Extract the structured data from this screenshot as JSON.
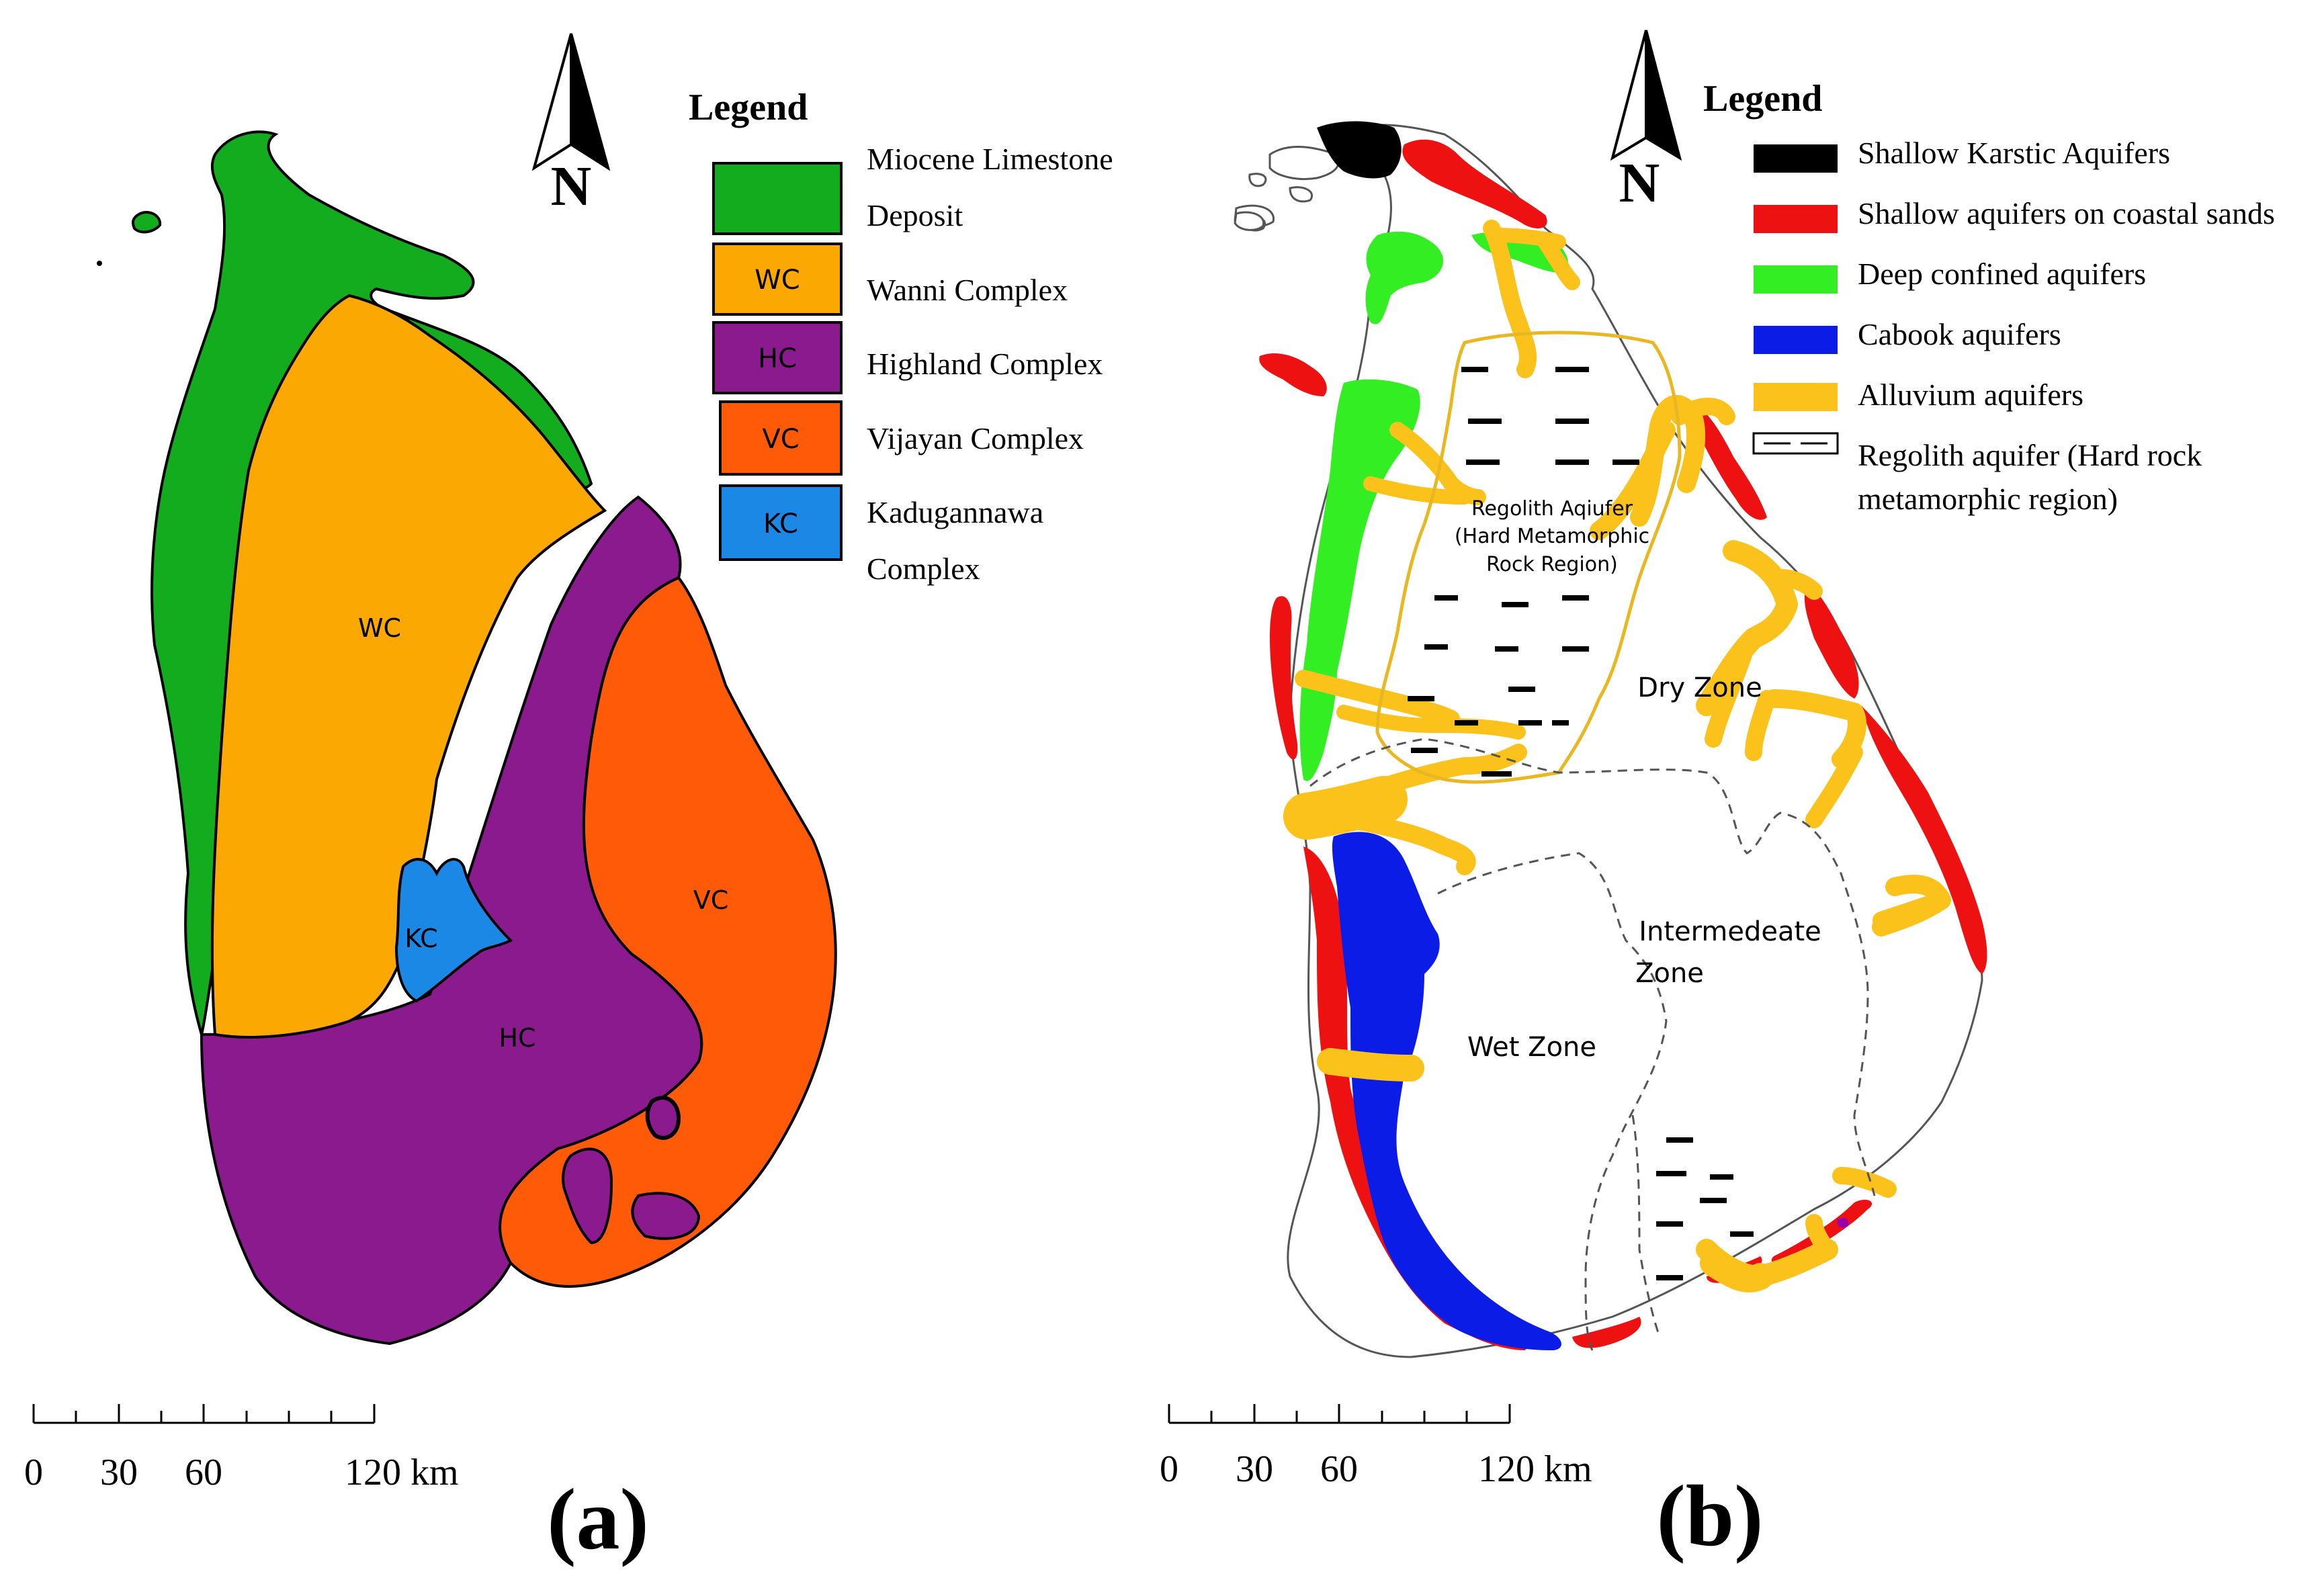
{
  "panel_a": {
    "label": "(a)",
    "legend_title": "Legend",
    "north": "N",
    "legend": [
      {
        "code": "",
        "name_line1": "Miocene Limestone",
        "name_line2": "Deposit",
        "color": "#12AC1E"
      },
      {
        "code": "WC",
        "name_line1": "Wanni Complex",
        "name_line2": "",
        "color": "#FBA802"
      },
      {
        "code": "HC",
        "name_line1": "Highland Complex",
        "name_line2": "",
        "color": "#8B1A8E"
      },
      {
        "code": "VC",
        "name_line1": "Vijayan Complex",
        "name_line2": "",
        "color": "#FF5A08"
      },
      {
        "code": "KC",
        "name_line1": "Kadugannawa",
        "name_line2": "Complex",
        "color": "#1C88E6"
      }
    ],
    "map_labels": {
      "wc": "WC",
      "hc": "HC",
      "vc": "VC",
      "kc": "KC"
    },
    "scale": {
      "t0": "0",
      "t30": "30",
      "t60": "60",
      "t120": "120 km"
    }
  },
  "panel_b": {
    "label": "(b)",
    "legend_title": "Legend",
    "north": "N",
    "legend": [
      {
        "name_line1": "Shallow Karstic Aquifers",
        "name_line2": "",
        "color": "#000000"
      },
      {
        "name_line1": "Shallow aquifers on coastal sands",
        "name_line2": "",
        "color": "#EE1111"
      },
      {
        "name_line1": "Deep confined aquifers",
        "name_line2": "",
        "color": "#33EE22"
      },
      {
        "name_line1": "Cabook aquifers",
        "name_line2": "",
        "color": "#0A1CE6"
      },
      {
        "name_line1": "Alluvium aquifers",
        "name_line2": "",
        "color": "#FCC21C"
      },
      {
        "name_line1": "Regolith aquifer (Hard rock",
        "name_line2": "metamorphic region)",
        "color": "#ffffff"
      }
    ],
    "map_labels": {
      "regolith_1": "Regolith Aqiufer",
      "regolith_2": "(Hard Metamorphic",
      "regolith_3": "Rock Region)",
      "dry": "Dry Zone",
      "inter_1": "Intermedeate",
      "inter_2": "Zone",
      "wet": "Wet Zone"
    },
    "scale": {
      "t0": "0",
      "t30": "30",
      "t60": "60",
      "t120": "120 km"
    }
  }
}
